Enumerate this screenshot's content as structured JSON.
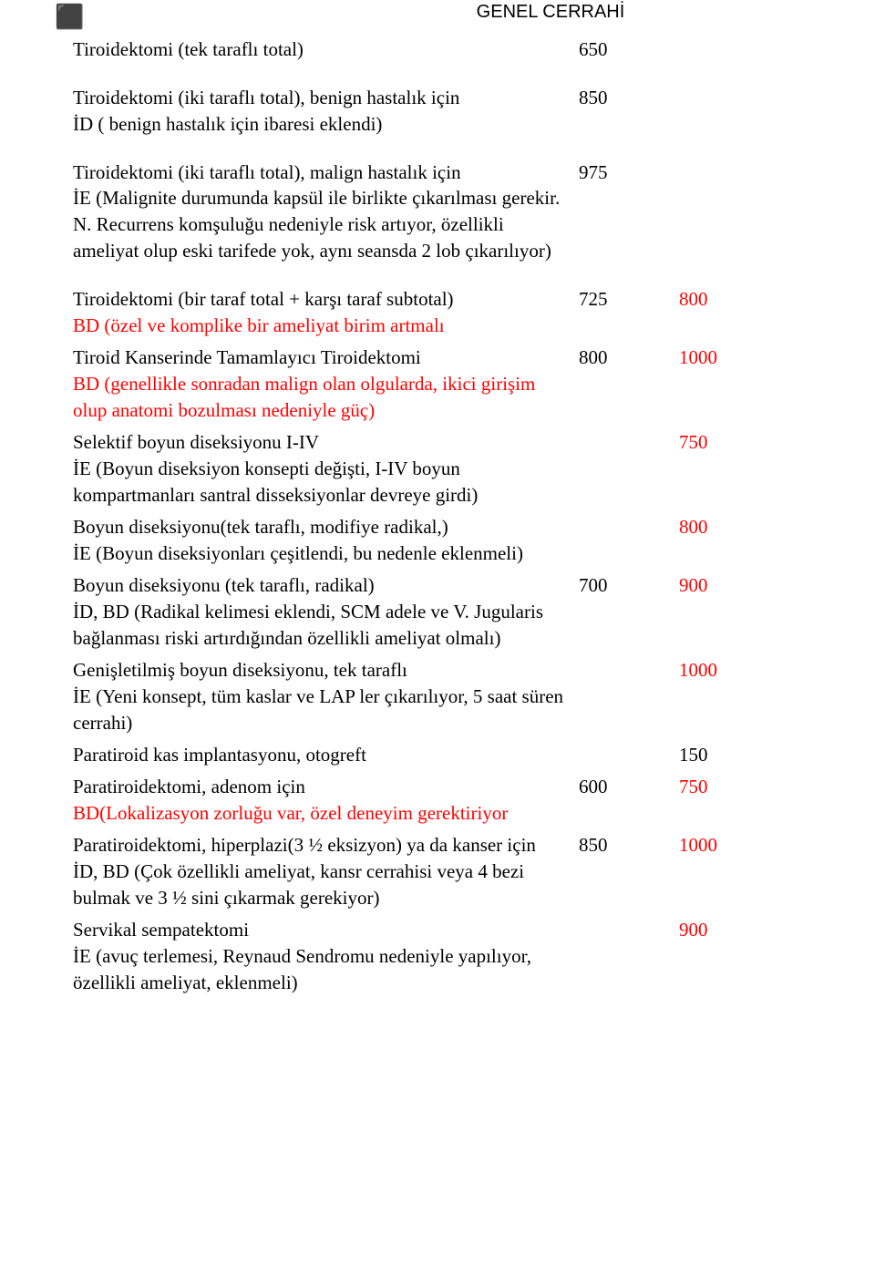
{
  "header": {
    "title": "GENEL CERRAHİ"
  },
  "rows": {
    "r1": {
      "desc": "Tiroidektomi (tek taraflı total)",
      "c2": "650",
      "c3": ""
    },
    "r2": {
      "desc": "Tiroidektomi (iki taraflı total), benign hastalık için",
      "c2": "850",
      "c3": ""
    },
    "r2b": {
      "desc": "İD ( benign hastalık için ibaresi eklendi)"
    },
    "r3": {
      "desc": "Tiroidektomi (iki taraflı total), malign hastalık için",
      "c2": "975",
      "c3": ""
    },
    "r3b": {
      "desc": "İE (Malignite durumunda kapsül ile birlikte çıkarılması gerekir. N. Recurrens komşuluğu nedeniyle risk artıyor, özellikli ameliyat olup eski tarifede yok, aynı seansda 2 lob çıkarılıyor)"
    },
    "r4": {
      "desc": "Tiroidektomi (bir taraf total + karşı taraf subtotal)",
      "c2": "725",
      "c3": "800"
    },
    "r4b": {
      "desc": "BD (özel ve komplike bir ameliyat birim artmalı"
    },
    "r5": {
      "desc": "Tiroid Kanserinde Tamamlayıcı Tiroidektomi",
      "c2": "800",
      "c3": "1000"
    },
    "r5b": {
      "desc": "BD (genellikle sonradan malign olan olgularda, ikici girişim olup anatomi bozulması nedeniyle güç)"
    },
    "r6": {
      "desc": "Selektif boyun diseksiyonu I-IV",
      "c2": "",
      "c3": "750"
    },
    "r6b": {
      "desc": "İE (Boyun diseksiyon konsepti değişti, I-IV boyun kompartmanları santral disseksiyonlar devreye girdi)"
    },
    "r7": {
      "desc": "Boyun diseksiyonu(tek taraflı, modifiye radikal,)",
      "c2": "",
      "c3": "800"
    },
    "r7b": {
      "desc": "İE (Boyun diseksiyonları çeşitlendi, bu nedenle eklenmeli)"
    },
    "r8": {
      "desc": "Boyun diseksiyonu (tek taraflı, radikal)",
      "c2": "700",
      "c3": "900"
    },
    "r8b": {
      "desc": "İD, BD (Radikal kelimesi eklendi, SCM adele ve V. Jugularis bağlanması riski artırdığından özellikli ameliyat olmalı)"
    },
    "r9": {
      "desc": "Genişletilmiş boyun diseksiyonu, tek taraflı",
      "c2": "",
      "c3": "1000"
    },
    "r9b": {
      "desc": "İE (Yeni konsept, tüm kaslar ve LAP ler çıkarılıyor, 5 saat süren cerrahi)"
    },
    "r10": {
      "desc": "Paratiroid kas implantasyonu, otogreft",
      "c2": "",
      "c3": "150"
    },
    "r11": {
      "desc": "Paratiroidektomi, adenom için",
      "c2": "600",
      "c3": "750"
    },
    "r11b": {
      "desc": "BD(Lokalizasyon zorluğu var, özel  deneyim gerektiriyor"
    },
    "r12": {
      "desc": "Paratiroidektomi, hiperplazi(3 ½ eksizyon) ya da kanser için",
      "c2": "850",
      "c3": "1000"
    },
    "r12b": {
      "desc": "İD, BD (Çok özellikli ameliyat, kansr cerrahisi veya 4 bezi bulmak ve 3 ½ sini çıkarmak gerekiyor)"
    },
    "r13": {
      "desc": "Servikal sempatektomi",
      "c2": "",
      "c3": "900"
    },
    "r13b": {
      "desc": "İE (avuç terlemesi, Reynaud Sendromu nedeniyle yapılıyor, özellikli ameliyat, eklenmeli)"
    }
  },
  "style": {
    "text_color": "#000000",
    "accent_color": "#ff0000",
    "background": "#ffffff",
    "font_size_pt": 16,
    "header_font": "Arial"
  }
}
